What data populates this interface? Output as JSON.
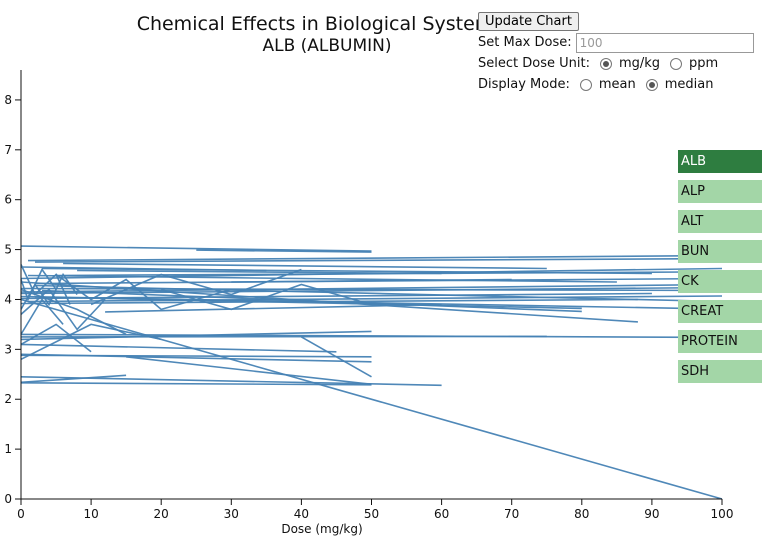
{
  "chart_data": {
    "type": "line",
    "title": "Chemical Effects in Biological System",
    "subtitle": "ALB (ALBUMIN)",
    "xlabel": "Dose (mg/kg)",
    "ylabel": "",
    "xlim": [
      0,
      100
    ],
    "ylim": [
      0,
      8.6
    ],
    "x_ticks": [
      0,
      10,
      20,
      30,
      40,
      50,
      60,
      70,
      80,
      90,
      100
    ],
    "y_ticks": [
      0,
      1,
      2,
      3,
      4,
      5,
      6,
      7,
      8
    ],
    "grid": false,
    "series": [
      {
        "x": [
          0,
          50
        ],
        "y": [
          5.07,
          4.97
        ]
      },
      {
        "x": [
          25,
          50
        ],
        "y": [
          4.99,
          4.95
        ]
      },
      {
        "x": [
          1,
          100
        ],
        "y": [
          4.78,
          4.88
        ]
      },
      {
        "x": [
          2,
          100
        ],
        "y": [
          4.75,
          4.82
        ]
      },
      {
        "x": [
          3,
          90
        ],
        "y": [
          4.62,
          4.52
        ]
      },
      {
        "x": [
          6,
          75
        ],
        "y": [
          4.72,
          4.62
        ]
      },
      {
        "x": [
          8,
          60
        ],
        "y": [
          4.58,
          4.52
        ]
      },
      {
        "x": [
          0,
          100
        ],
        "y": [
          4.42,
          4.62
        ]
      },
      {
        "x": [
          2,
          100
        ],
        "y": [
          4.32,
          4.42
        ]
      },
      {
        "x": [
          1,
          85
        ],
        "y": [
          4.48,
          4.35
        ]
      },
      {
        "x": [
          0,
          100
        ],
        "y": [
          4.22,
          4.18
        ]
      },
      {
        "x": [
          0,
          100
        ],
        "y": [
          4.12,
          4.24
        ]
      },
      {
        "x": [
          0,
          90
        ],
        "y": [
          4.02,
          4.12
        ]
      },
      {
        "x": [
          1,
          100
        ],
        "y": [
          3.96,
          4.07
        ]
      },
      {
        "x": [
          0,
          88
        ],
        "y": [
          3.92,
          4.0
        ]
      },
      {
        "x": [
          0,
          95
        ],
        "y": [
          4.06,
          3.82
        ]
      },
      {
        "x": [
          2,
          80
        ],
        "y": [
          4.05,
          3.82
        ]
      },
      {
        "x": [
          3,
          80
        ],
        "y": [
          4.18,
          3.76
        ]
      },
      {
        "x": [
          2,
          100
        ],
        "y": [
          4.28,
          3.96
        ]
      },
      {
        "x": [
          0,
          88
        ],
        "y": [
          4.35,
          3.55
        ]
      },
      {
        "x": [
          0,
          100
        ],
        "y": [
          3.3,
          3.24
        ]
      },
      {
        "x": [
          0,
          75
        ],
        "y": [
          3.25,
          3.26
        ]
      },
      {
        "x": [
          0,
          50
        ],
        "y": [
          3.2,
          3.36
        ]
      },
      {
        "x": [
          0,
          100
        ],
        "y": [
          4.0,
          0.0
        ]
      },
      {
        "x": [
          0,
          50
        ],
        "y": [
          2.88,
          2.85
        ]
      },
      {
        "x": [
          0,
          60
        ],
        "y": [
          2.45,
          2.28
        ]
      },
      {
        "x": [
          15,
          50
        ],
        "y": [
          2.85,
          2.3
        ]
      },
      {
        "x": [
          0,
          50
        ],
        "y": [
          2.33,
          2.29
        ]
      },
      {
        "x": [
          0,
          15
        ],
        "y": [
          2.34,
          2.48
        ]
      },
      {
        "x": [
          0,
          50
        ],
        "y": [
          2.9,
          2.75
        ]
      },
      {
        "x": [
          0,
          45
        ],
        "y": [
          3.1,
          2.95
        ]
      },
      {
        "x": [
          40,
          50
        ],
        "y": [
          3.25,
          2.45
        ]
      },
      {
        "x": [
          0,
          10,
          20
        ],
        "y": [
          2.8,
          3.5,
          3.2
        ]
      },
      {
        "x": [
          0,
          5,
          10
        ],
        "y": [
          3.1,
          3.5,
          2.95
        ]
      },
      {
        "x": [
          0,
          8,
          15
        ],
        "y": [
          4.2,
          3.8,
          3.3
        ]
      },
      {
        "x": [
          0,
          2,
          5,
          7
        ],
        "y": [
          4.7,
          4.1,
          4.5,
          3.9
        ]
      },
      {
        "x": [
          0,
          1,
          3,
          5
        ],
        "y": [
          4.4,
          4.0,
          4.6,
          4.2
        ]
      },
      {
        "x": [
          0,
          2,
          4,
          6,
          8
        ],
        "y": [
          3.8,
          4.3,
          3.9,
          4.5,
          4.1
        ]
      },
      {
        "x": [
          5,
          10,
          15,
          20,
          30
        ],
        "y": [
          4.5,
          4.0,
          4.4,
          3.8,
          4.2
        ]
      },
      {
        "x": [
          10,
          20,
          30,
          40
        ],
        "y": [
          3.9,
          4.5,
          4.1,
          4.6
        ]
      },
      {
        "x": [
          20,
          30,
          40,
          50
        ],
        "y": [
          4.2,
          3.8,
          4.3,
          3.9
        ]
      },
      {
        "x": [
          0,
          3,
          6
        ],
        "y": [
          3.3,
          4.0,
          3.5
        ]
      },
      {
        "x": [
          0,
          4,
          8,
          12
        ],
        "y": [
          3.7,
          4.2,
          3.4,
          4.0
        ]
      },
      {
        "x": [
          0,
          100
        ],
        "y": [
          4.15,
          4.3
        ]
      },
      {
        "x": [
          5,
          95
        ],
        "y": [
          4.48,
          4.55
        ]
      },
      {
        "x": [
          30,
          70
        ],
        "y": [
          4.35,
          4.4
        ]
      },
      {
        "x": [
          12,
          60
        ],
        "y": [
          3.75,
          3.9
        ]
      },
      {
        "x": [
          0,
          35
        ],
        "y": [
          4.65,
          4.58
        ]
      }
    ]
  },
  "controls": {
    "update_button": "Update Chart",
    "max_dose_label": "Set Max Dose:",
    "max_dose_placeholder": "100",
    "dose_unit_label": "Select Dose Unit:",
    "unit_options": [
      "mg/kg",
      "ppm"
    ],
    "unit_selected": "mg/kg",
    "display_mode_label": "Display Mode:",
    "mode_options": [
      "mean",
      "median"
    ],
    "mode_selected": "median"
  },
  "analytes": [
    "ALB",
    "ALP",
    "ALT",
    "BUN",
    "CK",
    "CREAT",
    "PROTEIN",
    "SDH"
  ],
  "active_analyte": "ALB",
  "colors": {
    "line": "#4682b4",
    "analyte_active": "#2e7d40",
    "analyte_inactive": "#a3d6a7"
  }
}
